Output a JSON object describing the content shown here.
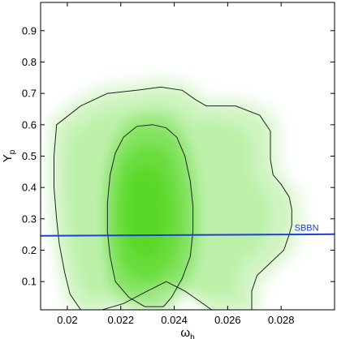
{
  "chart_data": {
    "type": "heatmap",
    "title": "",
    "xlabel": {
      "main": "ω",
      "sub": "b"
    },
    "ylabel": {
      "main": "Y",
      "sub": "p"
    },
    "xlim": [
      0.019,
      0.03
    ],
    "ylim": [
      0.01,
      0.99
    ],
    "xticks": [
      {
        "value": 0.02,
        "label": "0.02"
      },
      {
        "value": 0.022,
        "label": "0.022"
      },
      {
        "value": 0.024,
        "label": "0.024"
      },
      {
        "value": 0.026,
        "label": "0.026"
      },
      {
        "value": 0.028,
        "label": "0.028"
      }
    ],
    "yticks": [
      {
        "value": 0.1,
        "label": "0.1"
      },
      {
        "value": 0.2,
        "label": "0.2"
      },
      {
        "value": 0.3,
        "label": "0.3"
      },
      {
        "value": 0.4,
        "label": "0.4"
      },
      {
        "value": 0.5,
        "label": "0.5"
      },
      {
        "value": 0.6,
        "label": "0.6"
      },
      {
        "value": 0.7,
        "label": "0.7"
      },
      {
        "value": 0.8,
        "label": "0.8"
      },
      {
        "value": 0.9,
        "label": "0.9"
      }
    ],
    "grid": false,
    "density": {
      "peak": {
        "x": 0.0228,
        "y": 0.33
      },
      "color": "#3cd200",
      "background": "#ffffff"
    },
    "contours": [
      {
        "level": "inner",
        "color": "#222222",
        "points": [
          [
            0.0232,
            0.6
          ],
          [
            0.0237,
            0.59
          ],
          [
            0.0241,
            0.56
          ],
          [
            0.0244,
            0.5
          ],
          [
            0.0246,
            0.42
          ],
          [
            0.0247,
            0.34
          ],
          [
            0.0247,
            0.26
          ],
          [
            0.0246,
            0.18
          ],
          [
            0.0243,
            0.11
          ],
          [
            0.0239,
            0.05
          ],
          [
            0.0236,
            0.02
          ],
          [
            0.0229,
            0.02
          ],
          [
            0.0223,
            0.05
          ],
          [
            0.0218,
            0.1
          ],
          [
            0.0216,
            0.18
          ],
          [
            0.0215,
            0.26
          ],
          [
            0.0215,
            0.35
          ],
          [
            0.0216,
            0.44
          ],
          [
            0.0218,
            0.51
          ],
          [
            0.0221,
            0.56
          ],
          [
            0.0226,
            0.595
          ]
        ]
      },
      {
        "level": "outer",
        "color": "#222222",
        "points": [
          [
            0.0196,
            0.6
          ],
          [
            0.0205,
            0.66
          ],
          [
            0.0215,
            0.7
          ],
          [
            0.0226,
            0.71
          ],
          [
            0.0235,
            0.72
          ],
          [
            0.0243,
            0.71
          ],
          [
            0.0248,
            0.68
          ],
          [
            0.0252,
            0.66
          ],
          [
            0.0257,
            0.66
          ],
          [
            0.0263,
            0.66
          ],
          [
            0.0272,
            0.63
          ],
          [
            0.0276,
            0.58
          ],
          [
            0.0276,
            0.49
          ],
          [
            0.0277,
            0.44
          ],
          [
            0.028,
            0.41
          ],
          [
            0.0283,
            0.37
          ],
          [
            0.0284,
            0.33
          ],
          [
            0.0284,
            0.28
          ],
          [
            0.0283,
            0.25
          ],
          [
            0.0281,
            0.2
          ],
          [
            0.0276,
            0.16
          ],
          [
            0.0271,
            0.12
          ],
          [
            0.0269,
            0.07
          ],
          [
            0.0269,
            0.01
          ],
          [
            0.0254,
            0.01
          ],
          [
            0.0249,
            0.04
          ],
          [
            0.0244,
            0.07
          ],
          [
            0.0237,
            0.1
          ],
          [
            0.023,
            0.07
          ],
          [
            0.0221,
            0.03
          ],
          [
            0.0213,
            0.01
          ],
          [
            0.0205,
            0.01
          ],
          [
            0.0201,
            0.06
          ],
          [
            0.0199,
            0.13
          ],
          [
            0.0197,
            0.22
          ],
          [
            0.0196,
            0.3
          ],
          [
            0.0195,
            0.4
          ],
          [
            0.0195,
            0.5
          ]
        ]
      }
    ],
    "annotations": [
      {
        "label": "SBBN",
        "type": "line",
        "color": "#1f3fd6",
        "x": [
          0.019,
          0.03
        ],
        "y": [
          0.246,
          0.251
        ],
        "label_at": {
          "x": 0.0285,
          "y": 0.262
        }
      }
    ]
  }
}
